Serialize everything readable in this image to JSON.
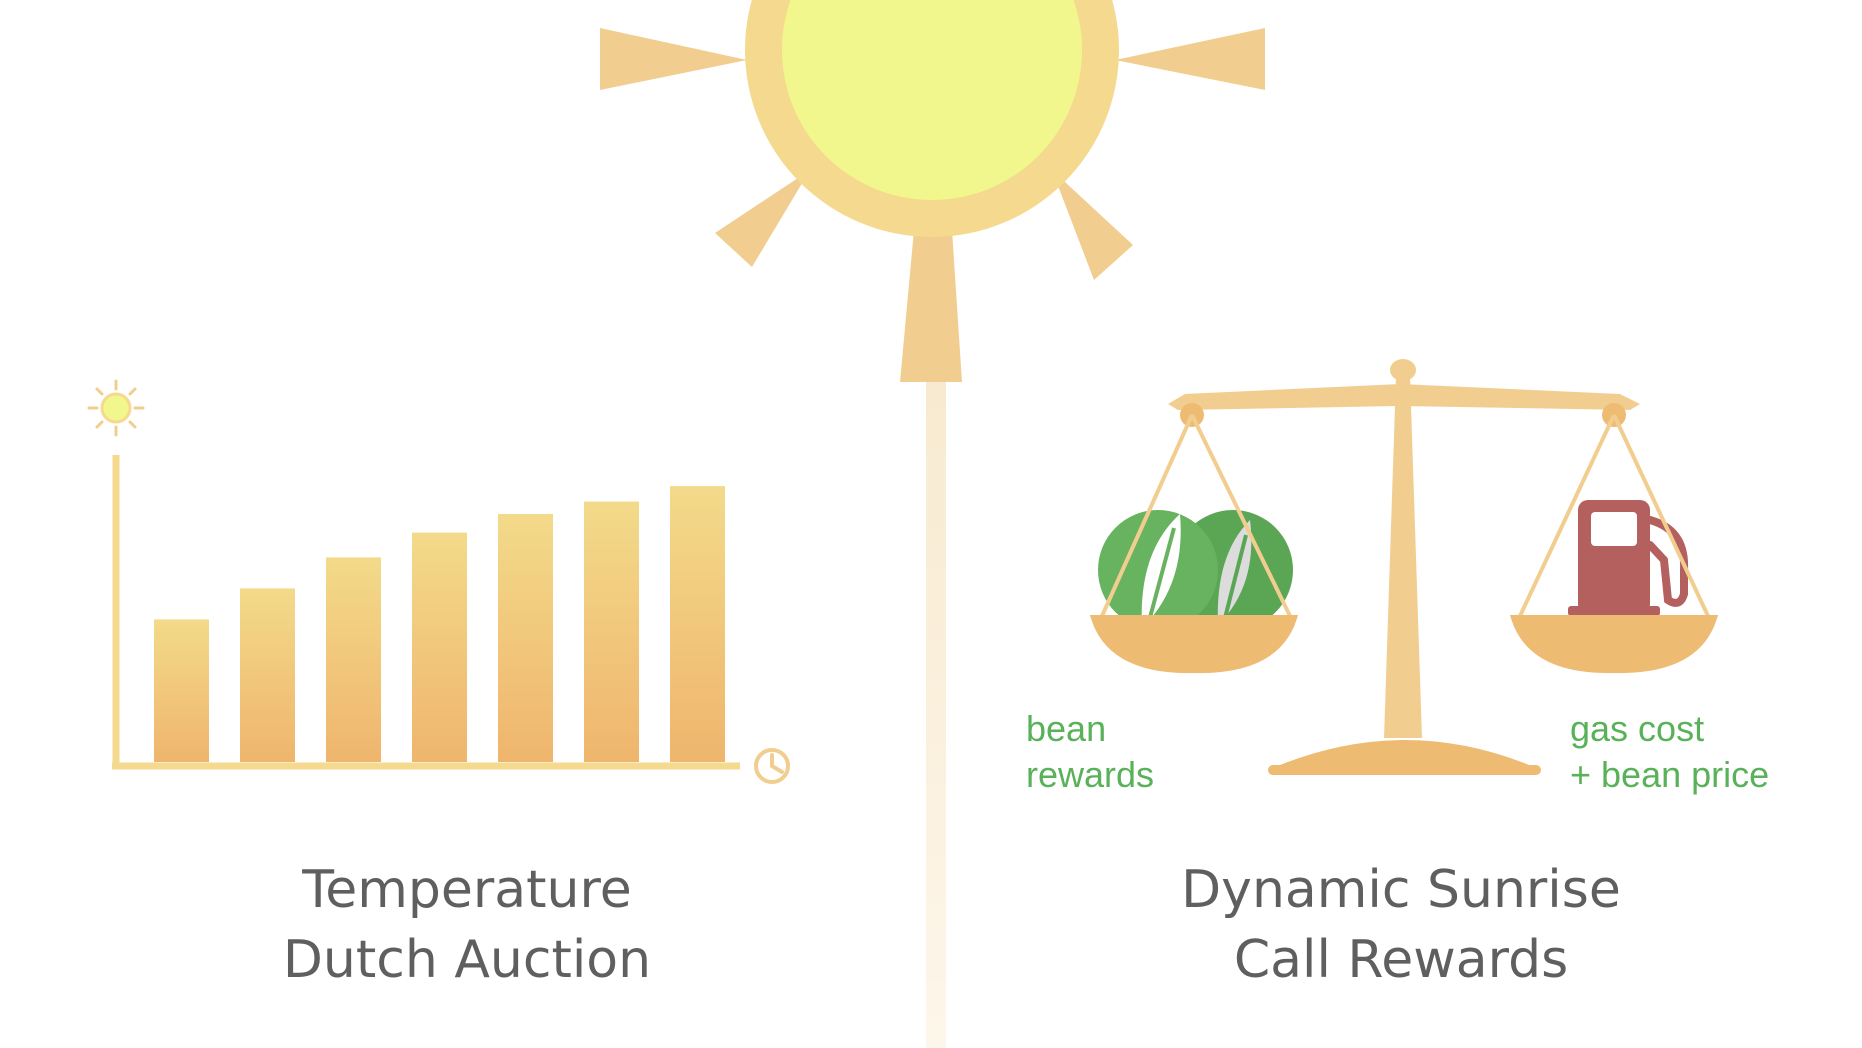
{
  "left_panel": {
    "title_line1": "Temperature",
    "title_line2": "Dutch Auction",
    "chart_data": {
      "type": "bar",
      "categories": [
        "",
        "",
        "",
        "",
        "",
        "",
        ""
      ],
      "values": [
        2.3,
        2.8,
        3.3,
        3.7,
        4.0,
        4.2,
        4.45
      ],
      "ylim": [
        0,
        5
      ],
      "x_axis_icon": "clock-icon",
      "y_axis_icon": "sun-icon",
      "bar_gradient": [
        "#f3da8a",
        "#efb56d"
      ]
    }
  },
  "right_panel": {
    "title_line1": "Dynamic Sunrise",
    "title_line2": "Call Rewards",
    "left_pan_label_line1": "bean",
    "left_pan_label_line2": "rewards",
    "right_pan_label_line1": "gas cost",
    "right_pan_label_line2": "+ bean price",
    "left_pan_icon": "bean-coin-icon",
    "right_pan_icon": "gas-pump-icon"
  },
  "colors": {
    "sun_core": "#f2f78d",
    "sun_ring": "#f4d98e",
    "sun_rays": "#f2cd90",
    "scale": "#f2cd90",
    "pan": "#eebb72",
    "bean_green": "#59b159",
    "pump_red": "#b3605e",
    "caption_text": "#5f5f5f",
    "divider": "#fdf6ea"
  }
}
